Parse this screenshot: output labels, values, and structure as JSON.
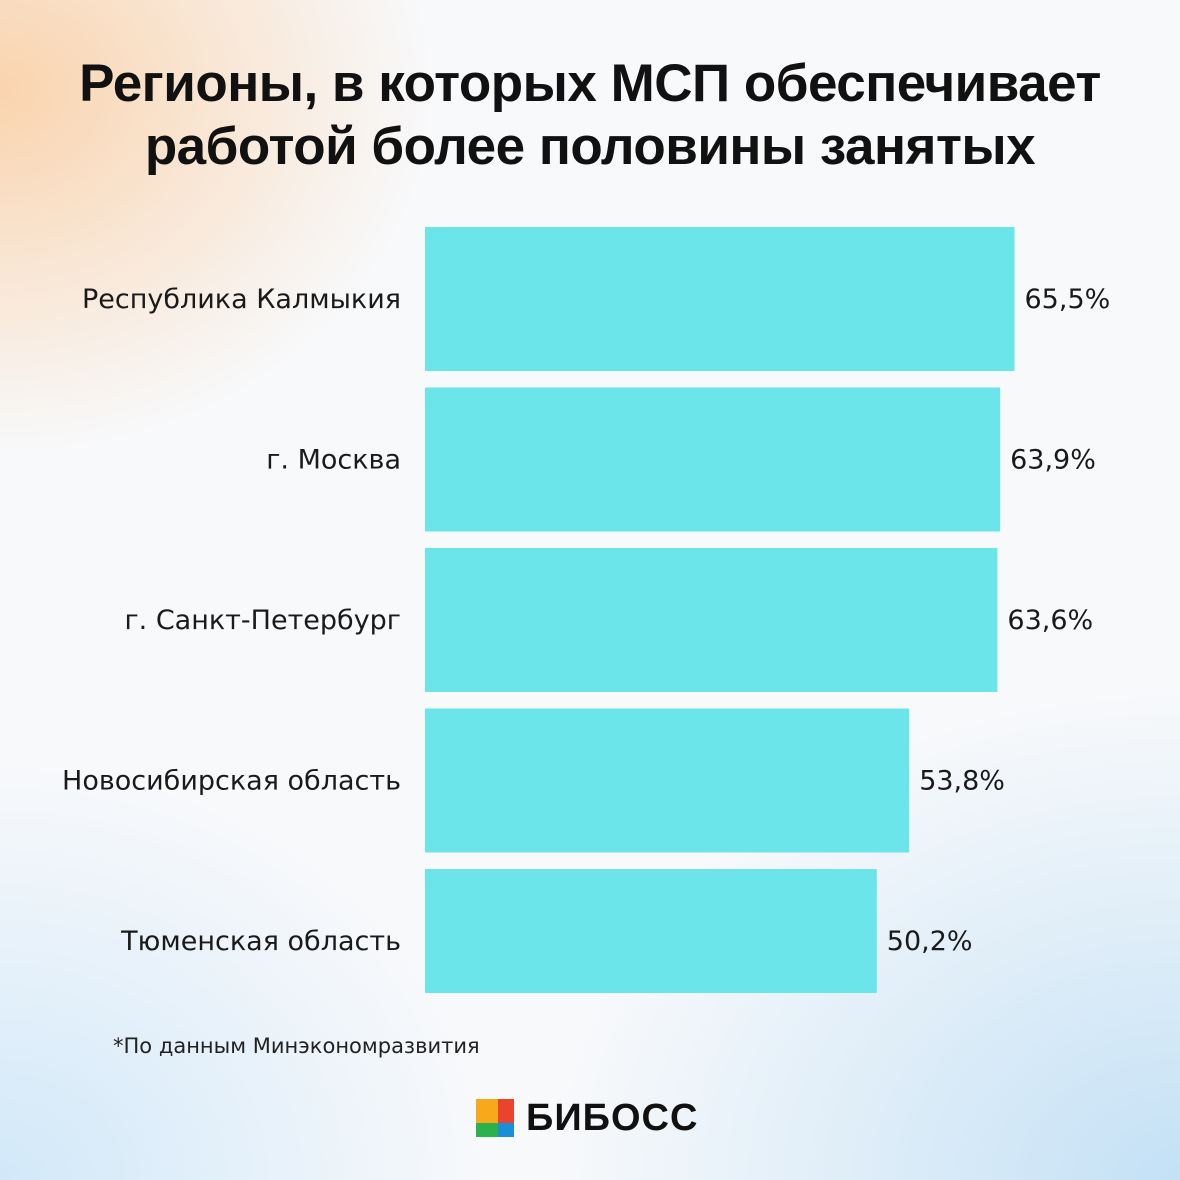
{
  "title_lines": [
    "Регионы, в которых МСП обеспечивает",
    "работой более половины занятых"
  ],
  "chart_data": {
    "type": "bar",
    "orientation": "horizontal",
    "title": "Регионы, в которых МСП обеспечивает работой более половины занятых",
    "categories": [
      "Республика Калмыкия",
      "г. Москва",
      "г. Санкт-Петербург",
      "Новосибирская область",
      "Тюменская область"
    ],
    "values": [
      65.5,
      63.9,
      63.6,
      53.8,
      50.2
    ],
    "value_labels": [
      "65,5%",
      "63,9%",
      "63,6%",
      "53,8%",
      "50,2%"
    ],
    "unit": "%",
    "grid": false,
    "legend": "none",
    "bar_color": "#6ce5ea"
  },
  "footnote": "*По данным Минэкономразвития",
  "logo": {
    "text": "БИБОСС",
    "icon": "bibloss-logo-icon",
    "colors": [
      "#f7a81b",
      "#2bb24c",
      "#1a8fd8",
      "#e8442e"
    ]
  }
}
